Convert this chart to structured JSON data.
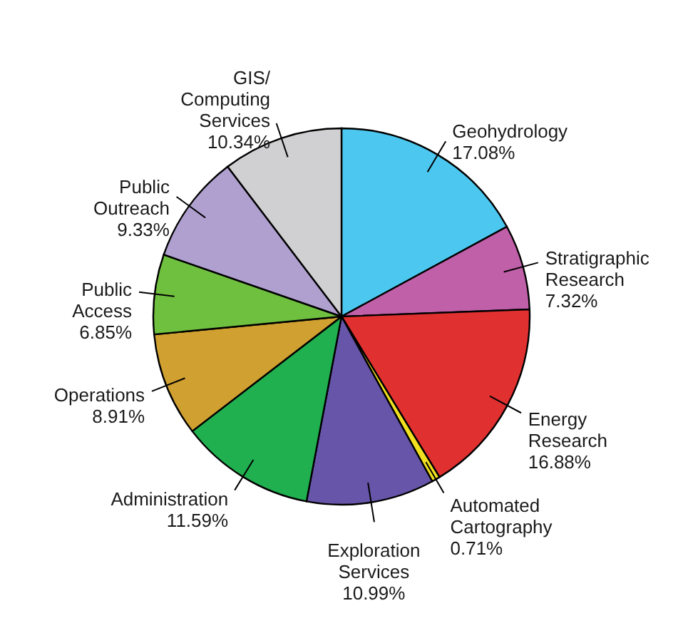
{
  "chart_data": {
    "type": "pie",
    "categories": [
      "Geohydrology",
      "Stratigraphic Research",
      "Energy Research",
      "Automated Cartography",
      "Exploration Services",
      "Administration",
      "Operations",
      "Public Access",
      "Public Outreach",
      "GIS/Computing Services"
    ],
    "values": [
      17.08,
      7.32,
      16.88,
      0.71,
      10.99,
      11.59,
      8.91,
      6.85,
      9.33,
      10.34
    ],
    "value_labels": [
      "17.08%",
      "7.32%",
      "16.88%",
      "0.71%",
      "10.99%",
      "11.59%",
      "8.91%",
      "6.85%",
      "9.33%",
      "10.34%"
    ],
    "colors": [
      "#4cc8f0",
      "#c060a8",
      "#e03030",
      "#f0e020",
      "#6655a8",
      "#20b050",
      "#d0a030",
      "#70c040",
      "#b0a0d0",
      "#d0d0d2"
    ]
  }
}
